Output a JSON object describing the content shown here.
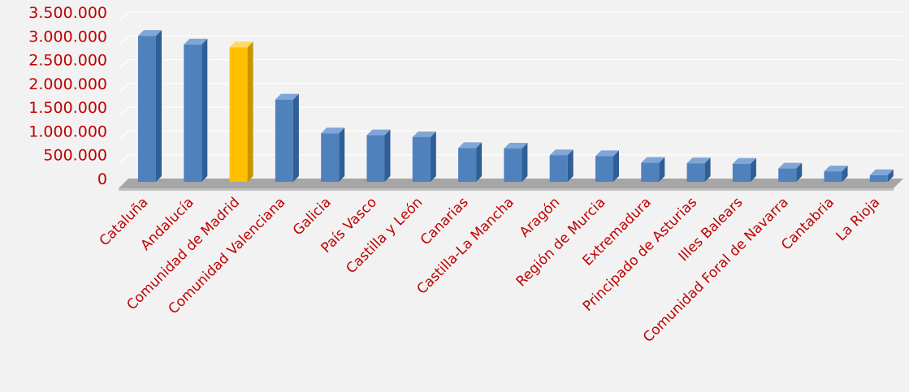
{
  "chart_data": {
    "type": "bar",
    "title": "",
    "xlabel": "",
    "ylabel": "",
    "ylim": [
      0,
      3500000
    ],
    "yticks": [
      0,
      500000,
      1000000,
      1500000,
      2000000,
      2500000,
      3000000,
      3500000
    ],
    "ytick_labels": [
      "0",
      "500.000",
      "1.000.000",
      "1.500.000",
      "2.000.000",
      "2.500.000",
      "3.000.000",
      "3.500.000"
    ],
    "grid": true,
    "legend": "none",
    "categories": [
      "Cataluña",
      "Andalucía",
      "Comunidad de Madrid",
      "Comunidad Valenciana",
      "Galicia",
      "País Vasco",
      "Castilla y León",
      "Canarias",
      "Castilla-La Mancha",
      "Aragón",
      "Región de Murcia",
      "Extremadura",
      "Principado de Asturias",
      "Illes Balears",
      "Comunidad Foral de Navarra",
      "Cantabria",
      "La Rioja"
    ],
    "values": [
      3070000,
      2890000,
      2830000,
      1730000,
      1020000,
      980000,
      940000,
      710000,
      700000,
      560000,
      540000,
      400000,
      390000,
      380000,
      280000,
      220000,
      140000
    ],
    "highlight_category": "Comunidad de Madrid",
    "colors": {
      "bar": "#4f81bd",
      "bar_highlight": "#ffc000",
      "tick_text": "#c00000",
      "floor": "#a6a6a6",
      "background": "#f2f2f2"
    }
  }
}
